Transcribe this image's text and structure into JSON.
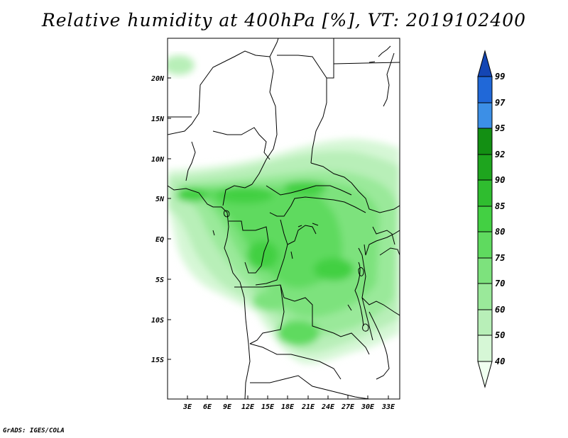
{
  "title": "Relative humidity at 400hPa [%], VT: 2019102400",
  "credit": "GrADS: IGES/COLA",
  "map": {
    "lon_labels": [
      "3E",
      "6E",
      "9E",
      "12E",
      "15E",
      "18E",
      "21E",
      "24E",
      "27E",
      "30E",
      "33E"
    ],
    "lat_labels": [
      "20N",
      "15N",
      "10N",
      "5N",
      "EQ",
      "5S",
      "10S",
      "15S"
    ]
  },
  "colorbar": {
    "levels": [
      "40",
      "50",
      "60",
      "70",
      "75",
      "80",
      "85",
      "90",
      "92",
      "95",
      "97",
      "99"
    ],
    "colors": [
      "#f0fff0",
      "#d6f7d6",
      "#b8efb8",
      "#9ae99a",
      "#7de27d",
      "#5fda5f",
      "#43d043",
      "#2fbd2f",
      "#1ea51e",
      "#138f13",
      "#3c8fe6",
      "#2068d8",
      "#1446b4"
    ]
  }
}
